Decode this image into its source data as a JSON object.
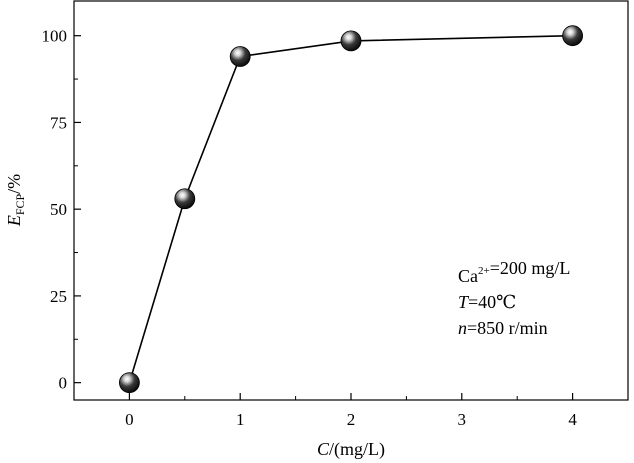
{
  "chart_data": {
    "type": "line",
    "xlabel": {
      "italic": "C",
      "rest": "/(mg/L)"
    },
    "ylabel": {
      "italic": "E",
      "sub": "FCP",
      "rest": "/%"
    },
    "x_ticks": [
      "0",
      "1",
      "2",
      "3",
      "4"
    ],
    "y_ticks": [
      "0",
      "25",
      "50",
      "75",
      "100"
    ],
    "y_tick_values": [
      0,
      25,
      50,
      75,
      100
    ],
    "xlim": [
      -0.5,
      4.5
    ],
    "ylim": [
      -5,
      110
    ],
    "grid": false,
    "marker": "sphere",
    "points": [
      {
        "x": 0,
        "y": 0
      },
      {
        "x": 0.5,
        "y": 53
      },
      {
        "x": 1,
        "y": 94
      },
      {
        "x": 2,
        "y": 98.5
      },
      {
        "x": 4,
        "y": 100
      }
    ],
    "annotations": [
      {
        "parts": [
          {
            "t": "Ca"
          },
          {
            "t": "2+",
            "s": "sup"
          },
          {
            "t": "=200 mg/L"
          }
        ]
      },
      {
        "parts": [
          {
            "t": "T",
            "s": "italic"
          },
          {
            "t": "=40℃"
          }
        ]
      },
      {
        "parts": [
          {
            "t": "n",
            "s": "italic"
          },
          {
            "t": "=850 r/min"
          }
        ]
      }
    ]
  },
  "colors": {
    "axis": "#000000",
    "line": "#000000",
    "marker_dark": "#000000",
    "marker_light": "#ffffff"
  }
}
